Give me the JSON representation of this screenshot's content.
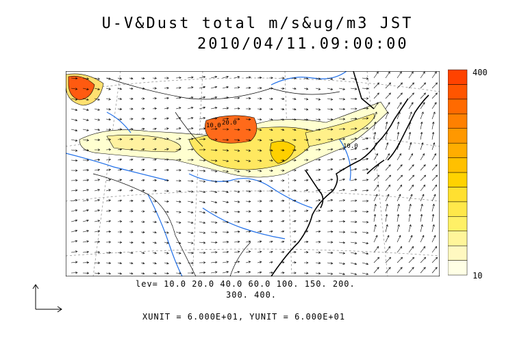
{
  "title": {
    "line1": "U-V&Dust total m/s&ug/m3 JST",
    "line2": "2010/04/11.09:00:00"
  },
  "colorbar": {
    "max_label": "400",
    "min_label": "10",
    "colors": [
      "#ffffe5",
      "#fff8c0",
      "#fff59a",
      "#fff066",
      "#ffe84a",
      "#ffe030",
      "#ffd200",
      "#ffc000",
      "#ffad00",
      "#ff9800",
      "#ff8000",
      "#ff6a00",
      "#ff5500",
      "#ff4200"
    ]
  },
  "levels": {
    "line1": "lev= 10.0 20.0 40.0 60.0 100. 150. 200.",
    "line2": "300. 400."
  },
  "units": {
    "text": "XUNIT = 6.000E+01, YUNIT = 6.000E+01"
  },
  "contour_labels": [
    "10.0",
    "10.0",
    "20.0"
  ]
}
